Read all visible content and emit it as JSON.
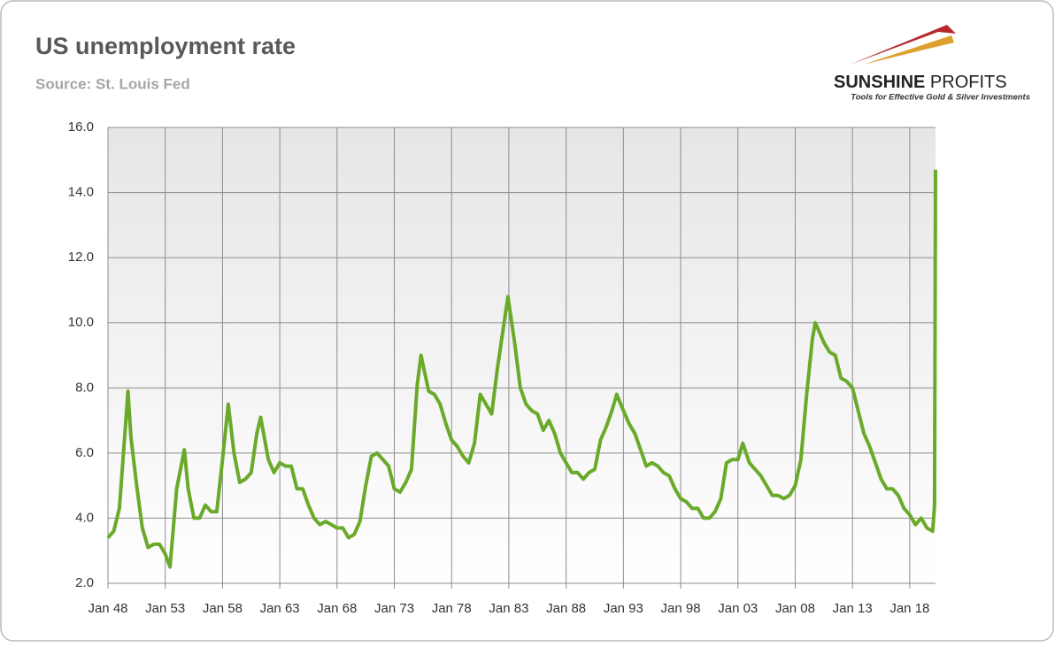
{
  "chart_data": {
    "type": "line",
    "title": "US unemployment rate",
    "subtitle": "Source: St. Louis Fed",
    "logo": {
      "name_bold": "SUNSHINE",
      "name_light": "PROFITS",
      "tagline": "Tools for Effective Gold & Silver Investments"
    },
    "color": "#6aaa2a",
    "grid": true,
    "x": [
      "Jan 48",
      "Jul 48",
      "Jan 49",
      "Jul 49",
      "Oct 49",
      "Jan 50",
      "Jul 50",
      "Jan 51",
      "Jul 51",
      "Jan 52",
      "Jul 52",
      "Jan 53",
      "Jun 53",
      "Jan 54",
      "Sep 54",
      "Jan 55",
      "Jul 55",
      "Jan 56",
      "Jul 56",
      "Jan 57",
      "Jul 57",
      "Jan 58",
      "Jul 58",
      "Jan 59",
      "Jul 59",
      "Jan 60",
      "Jul 60",
      "Jan 61",
      "May 61",
      "Jan 62",
      "Jul 62",
      "Jan 63",
      "Jul 63",
      "Jan 64",
      "Jul 64",
      "Jan 65",
      "Jul 65",
      "Jan 66",
      "Jul 66",
      "Jan 67",
      "Jul 67",
      "Jan 68",
      "Jul 68",
      "Jan 69",
      "Jul 69",
      "Jan 70",
      "Jul 70",
      "Jan 71",
      "Jul 71",
      "Jan 72",
      "Jul 72",
      "Jan 73",
      "Jul 73",
      "Jan 74",
      "Jul 74",
      "Jan 75",
      "May 75",
      "Jan 76",
      "Jul 76",
      "Jan 77",
      "Jul 77",
      "Jan 78",
      "Jul 78",
      "Jan 79",
      "Jul 79",
      "Jan 80",
      "Jul 80",
      "Jan 81",
      "Jul 81",
      "Jan 82",
      "Jul 82",
      "Dec 82",
      "Jul 83",
      "Jan 84",
      "Jul 84",
      "Jan 85",
      "Jul 85",
      "Jan 86",
      "Jul 86",
      "Jan 87",
      "Jul 87",
      "Jan 88",
      "Jul 88",
      "Jan 89",
      "Jul 89",
      "Jan 90",
      "Jul 90",
      "Jan 91",
      "Jul 91",
      "Jan 92",
      "Jun 92",
      "Jan 93",
      "Jul 93",
      "Jan 94",
      "Jul 94",
      "Jan 95",
      "Jul 95",
      "Jan 96",
      "Jul 96",
      "Jan 97",
      "Jul 97",
      "Jan 98",
      "Jul 98",
      "Jan 99",
      "Jul 99",
      "Jan 00",
      "Jul 00",
      "Jan 01",
      "Jul 01",
      "Jan 02",
      "Jul 02",
      "Jan 03",
      "Jun 03",
      "Jan 04",
      "Jul 04",
      "Jan 05",
      "Jul 05",
      "Jan 06",
      "Jul 06",
      "Jan 07",
      "Jul 07",
      "Jan 08",
      "Jul 08",
      "Jan 09",
      "Jul 09",
      "Oct 09",
      "Jan 10",
      "Jul 10",
      "Jan 11",
      "Jul 11",
      "Jan 12",
      "Jul 12",
      "Jan 13",
      "Jul 13",
      "Jan 14",
      "Jul 14",
      "Jan 15",
      "Jul 15",
      "Jan 16",
      "Jul 16",
      "Jan 17",
      "Jul 17",
      "Jan 18",
      "Jul 18",
      "Jan 19",
      "Jul 19",
      "Jan 20",
      "Mar 20",
      "Apr 20"
    ],
    "values": [
      3.4,
      3.6,
      4.3,
      6.7,
      7.9,
      6.5,
      5.0,
      3.7,
      3.1,
      3.2,
      3.2,
      2.9,
      2.5,
      4.9,
      6.1,
      4.9,
      4.0,
      4.0,
      4.4,
      4.2,
      4.2,
      5.8,
      7.5,
      6.0,
      5.1,
      5.2,
      5.4,
      6.6,
      7.1,
      5.8,
      5.4,
      5.7,
      5.6,
      5.6,
      4.9,
      4.9,
      4.4,
      4.0,
      3.8,
      3.9,
      3.8,
      3.7,
      3.7,
      3.4,
      3.5,
      3.9,
      5.0,
      5.9,
      6.0,
      5.8,
      5.6,
      4.9,
      4.8,
      5.1,
      5.5,
      8.1,
      9.0,
      7.9,
      7.8,
      7.5,
      6.9,
      6.4,
      6.2,
      5.9,
      5.7,
      6.3,
      7.8,
      7.5,
      7.2,
      8.6,
      9.8,
      10.8,
      9.4,
      8.0,
      7.5,
      7.3,
      7.2,
      6.7,
      7.0,
      6.6,
      6.0,
      5.7,
      5.4,
      5.4,
      5.2,
      5.4,
      5.5,
      6.4,
      6.8,
      7.3,
      7.8,
      7.3,
      6.9,
      6.6,
      6.1,
      5.6,
      5.7,
      5.6,
      5.4,
      5.3,
      4.9,
      4.6,
      4.5,
      4.3,
      4.3,
      4.0,
      4.0,
      4.2,
      4.6,
      5.7,
      5.8,
      5.8,
      6.3,
      5.7,
      5.5,
      5.3,
      5.0,
      4.7,
      4.7,
      4.6,
      4.7,
      5.0,
      5.8,
      7.8,
      9.5,
      10.0,
      9.8,
      9.4,
      9.1,
      9.0,
      8.3,
      8.2,
      8.0,
      7.3,
      6.6,
      6.2,
      5.7,
      5.2,
      4.9,
      4.9,
      4.7,
      4.3,
      4.1,
      3.8,
      4.0,
      3.7,
      3.6,
      4.4,
      14.7
    ],
    "xlim": [
      "Jan 48",
      "Apr 20"
    ],
    "xticks": [
      "Jan 48",
      "Jan 53",
      "Jan 58",
      "Jan 63",
      "Jan 68",
      "Jan 73",
      "Jan 78",
      "Jan 83",
      "Jan 88",
      "Jan 93",
      "Jan 98",
      "Jan 03",
      "Jan 08",
      "Jan 13",
      "Jan 18"
    ],
    "ylim": [
      2,
      16
    ],
    "yticks": [
      {
        "value": 2,
        "label": "2.0"
      },
      {
        "value": 4,
        "label": "4.0"
      },
      {
        "value": 6,
        "label": "6.0"
      },
      {
        "value": 8,
        "label": "8.0"
      },
      {
        "value": 10,
        "label": "10.0"
      },
      {
        "value": 12,
        "label": "12.0"
      },
      {
        "value": 14,
        "label": "14.0"
      },
      {
        "value": 16,
        "label": "16.0"
      }
    ]
  }
}
